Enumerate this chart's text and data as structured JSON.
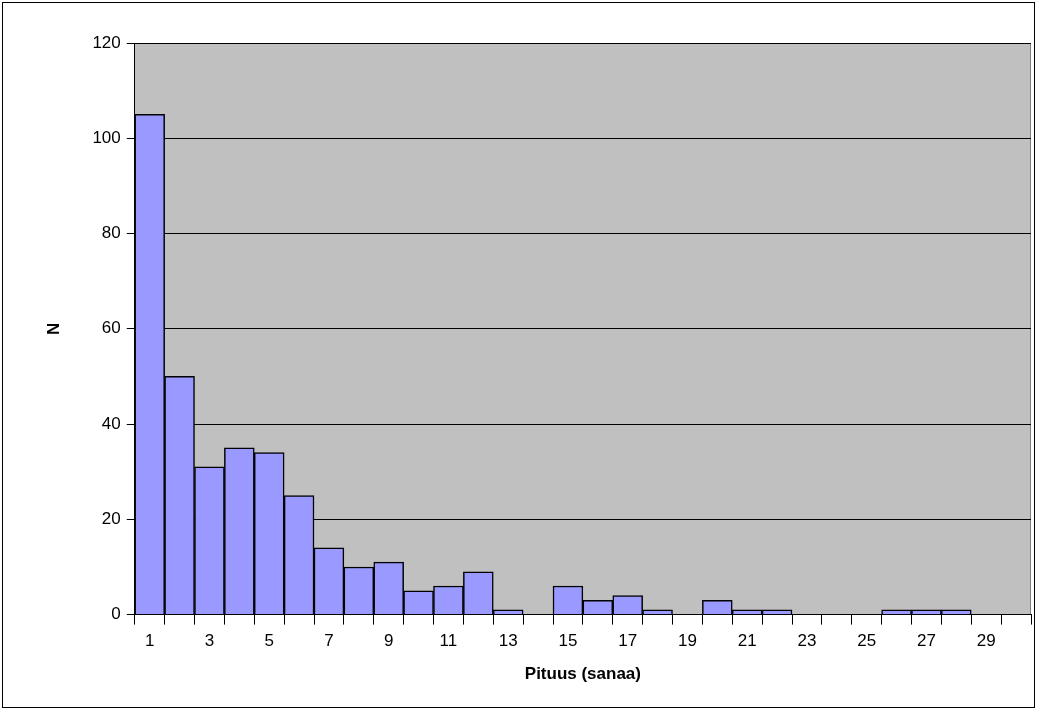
{
  "chart_data": {
    "type": "bar",
    "xlabel": "Pituus (sanaa)",
    "ylabel": "N",
    "categories": [
      "1",
      null,
      "3",
      null,
      "5",
      null,
      "7",
      null,
      "9",
      null,
      "11",
      null,
      "13",
      null,
      "15",
      null,
      "17",
      null,
      "19",
      null,
      "21",
      null,
      "23",
      null,
      "25",
      null,
      "27",
      null,
      "29",
      null
    ],
    "values": [
      105,
      50,
      31,
      35,
      34,
      25,
      14,
      10,
      11,
      5,
      6,
      9,
      1,
      0,
      6,
      3,
      4,
      1,
      0,
      3,
      1,
      1,
      0,
      0,
      0,
      1,
      1,
      1,
      0,
      0
    ],
    "color": "#9999ff",
    "ylim": [
      0,
      120
    ],
    "yticks": [
      0,
      20,
      40,
      60,
      80,
      100,
      120
    ],
    "grid": "y",
    "legend": false
  }
}
